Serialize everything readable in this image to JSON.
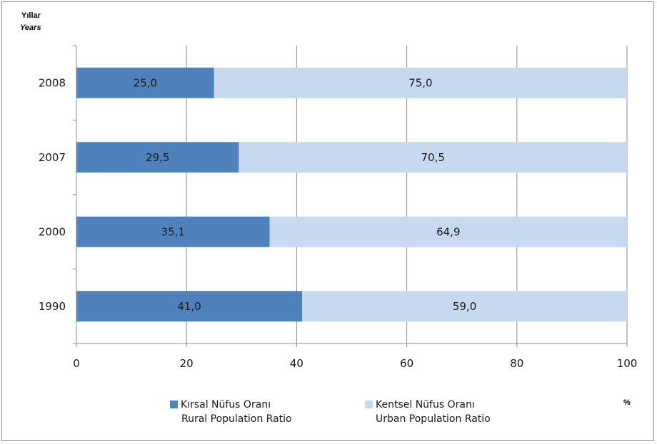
{
  "chart_data": {
    "type": "bar",
    "orientation": "horizontal",
    "stacked": true,
    "y_title": {
      "line1": "Yıllar",
      "line2": "Years"
    },
    "unit_label": "%",
    "categories": [
      "2008",
      "2007",
      "2000",
      "1990"
    ],
    "xlim": [
      0,
      100
    ],
    "x_ticks": [
      0,
      20,
      40,
      60,
      80,
      100
    ],
    "grid": "vertical",
    "series": [
      {
        "name": "Kırsal Nüfus Oranı",
        "name_en": "Rural Population Ratio",
        "color": "#4f81bd",
        "values": [
          25.0,
          29.5,
          35.1,
          41.0
        ],
        "labels": [
          "25,0",
          "29,5",
          "35,1",
          "41,0"
        ]
      },
      {
        "name": "Kentsel Nüfus Oranı",
        "name_en": "Urban Population Ratio",
        "color": "#c6d9f1",
        "values": [
          75.0,
          70.5,
          64.9,
          59.0
        ],
        "labels": [
          "75,0",
          "70,5",
          "64,9",
          "59,0"
        ]
      }
    ],
    "legend_position": "bottom"
  }
}
